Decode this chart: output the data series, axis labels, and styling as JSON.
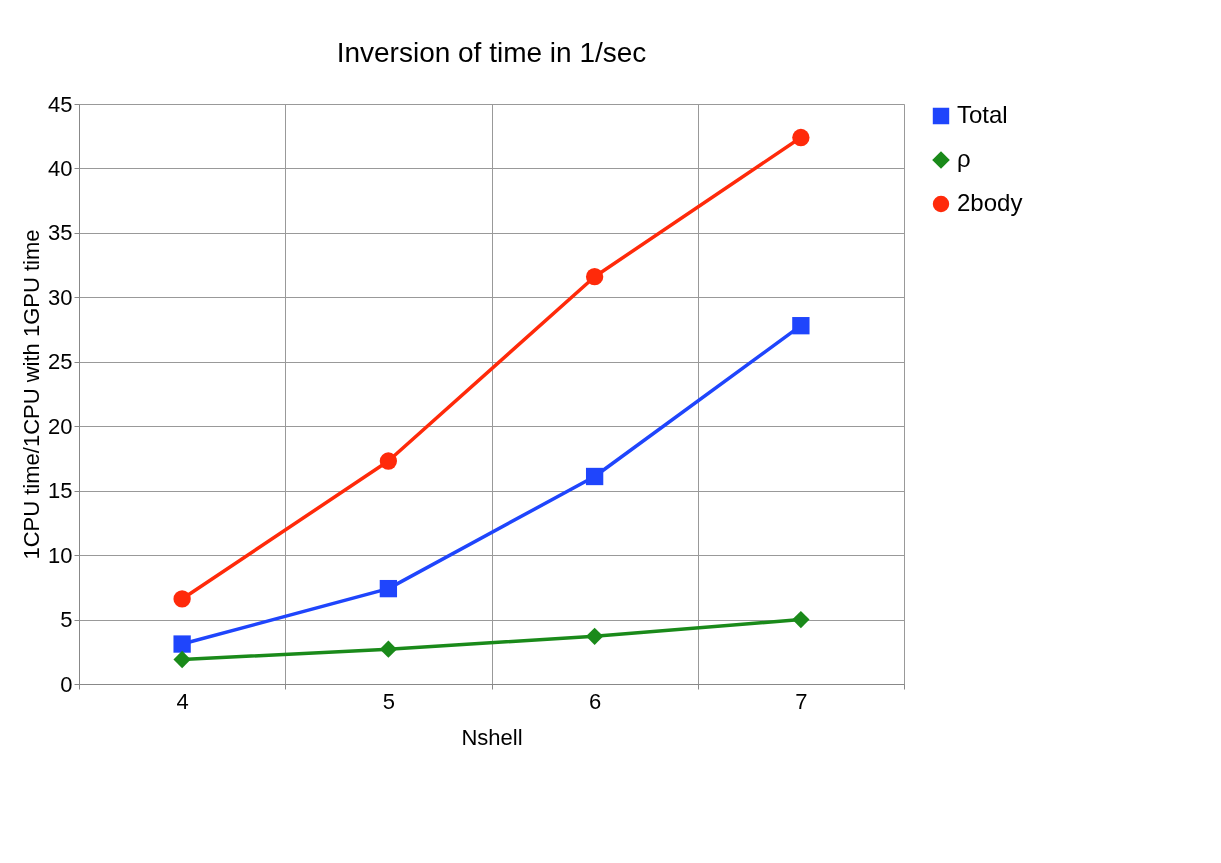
{
  "chart_data": {
    "type": "line",
    "title": "Inversion of time in 1/sec",
    "xlabel": "Nshell",
    "ylabel": "1CPU time/1CPU with 1GPU time",
    "categories": [
      "4",
      "5",
      "6",
      "7"
    ],
    "series": [
      {
        "name": "Total",
        "color": "#1f45fc",
        "marker": "square",
        "values": [
          3.1,
          7.4,
          16.1,
          27.8
        ]
      },
      {
        "name": "ρ",
        "color": "#1a8a1a",
        "marker": "diamond",
        "values": [
          1.9,
          2.7,
          3.7,
          5.0
        ]
      },
      {
        "name": "2body",
        "color": "#ff2a0a",
        "marker": "circle",
        "values": [
          6.6,
          17.3,
          31.6,
          42.4
        ]
      }
    ],
    "ylim": [
      0,
      45
    ],
    "yticks": [
      0,
      5,
      10,
      15,
      20,
      25,
      30,
      35,
      40,
      45
    ],
    "grid": true,
    "legend": "right",
    "line_style": "solid"
  }
}
